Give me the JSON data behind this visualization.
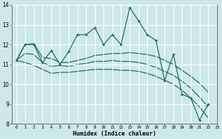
{
  "xlabel": "Humidex (Indice chaleur)",
  "bg_color": "#cde8e8",
  "grid_color": "#ffffff",
  "line_color": "#1a6b60",
  "x_values": [
    0,
    1,
    2,
    3,
    4,
    5,
    6,
    7,
    8,
    9,
    10,
    11,
    12,
    13,
    14,
    15,
    16,
    17,
    18,
    19,
    20,
    21,
    22
  ],
  "line1": [
    11.2,
    12.0,
    12.0,
    11.1,
    11.7,
    11.0,
    11.65,
    12.5,
    12.5,
    12.85,
    12.0,
    12.5,
    12.0,
    13.85,
    13.2,
    12.5,
    12.2,
    10.2,
    11.5,
    9.5,
    9.3,
    8.2,
    9.0
  ],
  "line2": [
    11.2,
    12.0,
    12.05,
    11.35,
    11.3,
    11.1,
    11.1,
    11.2,
    11.3,
    11.45,
    11.5,
    11.55,
    11.55,
    11.6,
    11.55,
    11.5,
    11.4,
    11.2,
    11.0,
    10.7,
    10.4,
    10.05,
    9.6
  ],
  "line3": [
    11.2,
    11.55,
    11.5,
    11.1,
    10.9,
    10.95,
    10.9,
    11.0,
    11.05,
    11.15,
    11.15,
    11.2,
    11.15,
    11.15,
    11.1,
    11.0,
    10.85,
    10.65,
    10.45,
    10.15,
    9.8,
    9.35,
    8.85
  ],
  "line4": [
    11.2,
    11.1,
    10.95,
    10.75,
    10.55,
    10.6,
    10.6,
    10.65,
    10.7,
    10.75,
    10.75,
    10.75,
    10.7,
    10.7,
    10.65,
    10.55,
    10.4,
    10.2,
    10.0,
    9.7,
    9.3,
    8.85,
    8.3
  ],
  "ylim": [
    8,
    14
  ],
  "xlim": [
    -0.5,
    23
  ],
  "yticks": [
    8,
    9,
    10,
    11,
    12,
    13,
    14
  ],
  "xticks": [
    0,
    1,
    2,
    3,
    4,
    5,
    6,
    7,
    8,
    9,
    10,
    11,
    12,
    13,
    14,
    15,
    16,
    17,
    18,
    19,
    20,
    21,
    22,
    23
  ]
}
